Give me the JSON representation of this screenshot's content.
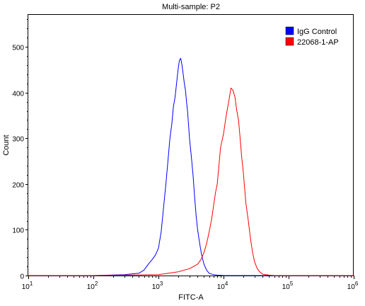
{
  "chart_data": {
    "type": "line",
    "title": "Multi-sample: P2",
    "xlabel": "FITC-A",
    "ylabel": "Count",
    "xscale": "log",
    "xlim": [
      10,
      1000000
    ],
    "ylim": [
      0,
      570
    ],
    "x_ticks": [
      {
        "value": 10,
        "base": "10",
        "exp": "1"
      },
      {
        "value": 100,
        "base": "10",
        "exp": "2"
      },
      {
        "value": 1000,
        "base": "10",
        "exp": "3"
      },
      {
        "value": 10000,
        "base": "10",
        "exp": "4"
      },
      {
        "value": 100000,
        "base": "10",
        "exp": "5"
      },
      {
        "value": 1000000,
        "base": "10",
        "exp": "6"
      }
    ],
    "y_ticks": [
      0,
      100,
      200,
      300,
      400,
      500
    ],
    "legend_position": "top-right",
    "grid": false,
    "series": [
      {
        "name": "IgG Control",
        "color": "#0000ff",
        "x": [
          10,
          100,
          300,
          500,
          600,
          700,
          800,
          900,
          1000,
          1100,
          1200,
          1300,
          1400,
          1500,
          1600,
          1700,
          1800,
          1900,
          2000,
          2100,
          2200,
          2300,
          2400,
          2500,
          2600,
          2700,
          2800,
          2900,
          3000,
          3200,
          3400,
          3600,
          3800,
          4000,
          4300,
          4600,
          5000,
          5500,
          6000,
          7000,
          8000,
          10000,
          20000,
          100000,
          1000000
        ],
        "y": [
          0,
          0,
          2,
          5,
          12,
          25,
          35,
          45,
          60,
          95,
          150,
          200,
          250,
          300,
          330,
          370,
          390,
          420,
          450,
          470,
          475,
          460,
          440,
          420,
          405,
          380,
          360,
          330,
          300,
          260,
          220,
          170,
          130,
          100,
          70,
          45,
          25,
          12,
          5,
          2,
          1,
          0,
          0,
          0,
          0
        ]
      },
      {
        "name": "22068-1-AP",
        "color": "#ff0000",
        "x": [
          10,
          100,
          1000,
          2000,
          3000,
          4000,
          4500,
          5000,
          5500,
          6000,
          6500,
          7000,
          7500,
          8000,
          8500,
          9000,
          10000,
          11000,
          12000,
          13000,
          14000,
          15000,
          16000,
          17000,
          18000,
          19000,
          20000,
          22000,
          24000,
          26000,
          28000,
          30000,
          33000,
          36000,
          40000,
          50000,
          60000,
          100000,
          1000000
        ],
        "y": [
          0,
          0,
          2,
          8,
          15,
          25,
          35,
          50,
          70,
          95,
          120,
          150,
          180,
          200,
          240,
          280,
          310,
          350,
          380,
          410,
          405,
          390,
          360,
          340,
          300,
          260,
          230,
          160,
          120,
          80,
          50,
          30,
          15,
          8,
          3,
          1,
          0,
          0,
          0
        ]
      }
    ]
  }
}
